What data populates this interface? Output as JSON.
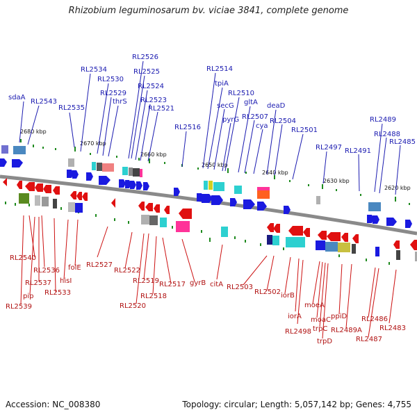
{
  "title": "Rhizobium leguminosarum bv. viciae 3841, complete genome",
  "footer": {
    "accession": "Accession: NC_008380",
    "topology": "Topology: circular; Length: 5,057,142 bp; Genes: 4,755"
  },
  "colors": {
    "forward": "#1a1ae0",
    "reverse": "#e01010",
    "backbone": "#8a8a8a",
    "tick": "#1e8a1e"
  },
  "ticks": [
    "2680 kbp",
    "2670 kbp",
    "2660 kbp",
    "2650 kbp",
    "2640 kbp",
    "2630 kbp",
    "2620 kbp"
  ],
  "forward_labels": [
    "sdaA",
    "RL2543",
    "RL2535",
    "RL2534",
    "RL2530",
    "RL2529",
    "thrS",
    "RL2526",
    "RL2525",
    "RL2524",
    "RL2523",
    "RL2521",
    "RL2516",
    "RL2514",
    "tpiA",
    "secG",
    "RL2510",
    "pyrG",
    "gltA",
    "RL2507",
    "cya",
    "deaD",
    "RL2504",
    "RL2501",
    "RL2497",
    "RL2491",
    "RL2489",
    "RL2488",
    "RL2485"
  ],
  "reverse_labels": [
    "RL2540",
    "RL2536",
    "RL2537",
    "pip",
    "RL2539",
    "RL2533",
    "hisI",
    "folE",
    "RL2527",
    "RL2522",
    "RL2519",
    "RL2520",
    "RL2518",
    "RL2517",
    "gyrB",
    "citA",
    "RL2503",
    "RL2502",
    "iorB",
    "iorA",
    "RL2498",
    "moeA",
    "moaC",
    "trpC",
    "trpD",
    "ppiD",
    "RL2489A",
    "RL2486",
    "RL2487",
    "RL2483"
  ]
}
